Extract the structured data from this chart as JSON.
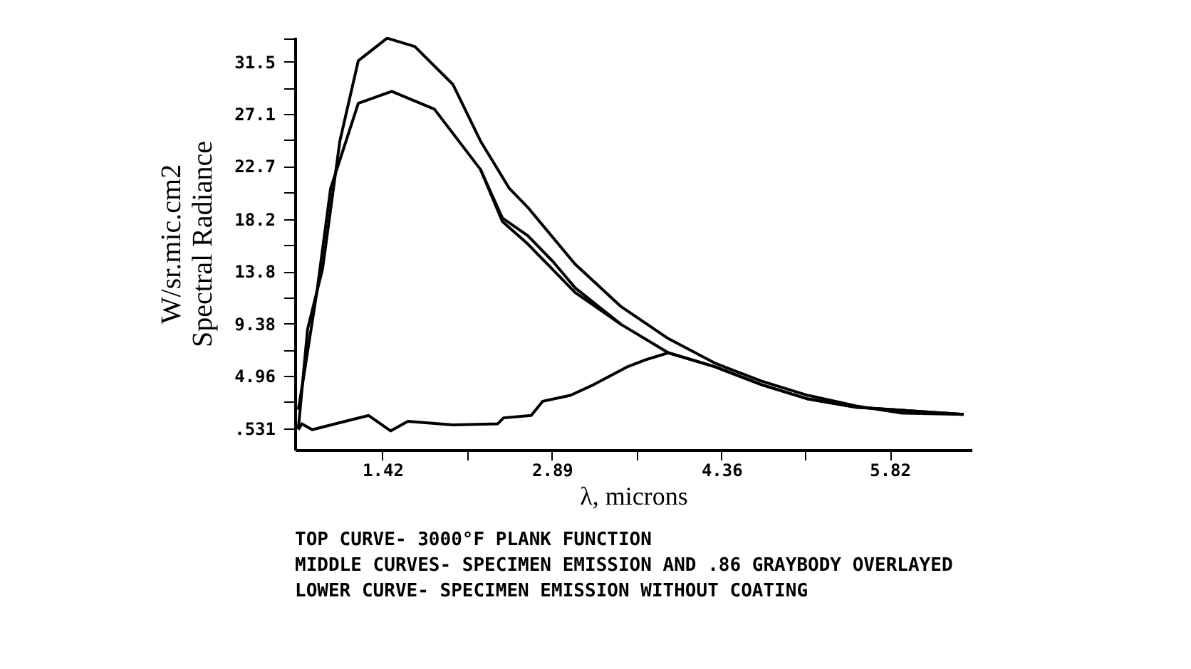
{
  "chart_data": {
    "type": "line",
    "ylabel": "W/sr.mic.cm2\nSpectral Radiance",
    "xlabel": "λ, microns",
    "xlim": [
      0.66,
      6.53
    ],
    "ylim": [
      -1.3,
      33.6
    ],
    "xticks": [
      1.42,
      {
        "value": 2.155,
        "label": null
      },
      2.89,
      {
        "value": 3.625,
        "label": null
      },
      4.36,
      {
        "value": 5.09,
        "label": null
      },
      5.82
    ],
    "yticks": [
      {
        "value": 0.531,
        "label": ".531"
      },
      {
        "value": 2.75,
        "label": null
      },
      4.96,
      {
        "value": 7.17,
        "label": null
      },
      9.38,
      {
        "value": 11.6,
        "label": null
      },
      13.8,
      {
        "value": 16.0,
        "label": null
      },
      18.2,
      {
        "value": 20.45,
        "label": null
      },
      22.7,
      {
        "value": 24.9,
        "label": null
      },
      27.1,
      {
        "value": 29.3,
        "label": null
      },
      31.5,
      {
        "value": 33.5,
        "label": null
      }
    ],
    "grid": false,
    "legend": false,
    "line_style": "solid",
    "marker": "none",
    "series": [
      {
        "color": "#000000",
        "x": [
          0.69,
          0.77,
          0.9,
          1.05,
          1.21,
          1.46,
          1.7,
          2.03,
          2.27,
          2.52,
          2.68,
          3.09,
          3.49,
          3.9,
          4.31,
          4.71,
          5.11,
          5.53,
          5.93,
          6.46
        ],
        "values": [
          0.5,
          8.9,
          14.0,
          24.8,
          31.6,
          33.5,
          32.8,
          29.6,
          24.8,
          20.8,
          19.2,
          14.4,
          10.8,
          8.1,
          6.0,
          4.5,
          3.3,
          2.4,
          1.8,
          1.7
        ]
      },
      {
        "color": "#000000",
        "x": [
          0.69,
          0.73,
          0.85,
          0.97,
          1.21,
          1.5,
          1.87,
          2.27,
          2.46,
          2.68,
          3.09,
          3.49,
          3.9,
          4.31,
          4.71,
          5.11,
          5.53,
          6.46
        ],
        "values": [
          2.1,
          4.5,
          12.0,
          20.8,
          28.0,
          29.0,
          27.5,
          22.4,
          18.0,
          16.1,
          12.0,
          9.3,
          6.9,
          5.7,
          4.2,
          3.0,
          2.3,
          1.7
        ]
      },
      {
        "color": "#000000",
        "x": [
          2.27,
          2.46,
          2.68,
          2.9,
          3.09,
          3.49
        ],
        "values": [
          22.4,
          18.3,
          16.8,
          14.6,
          12.4,
          9.3
        ]
      },
      {
        "color": "#000000",
        "x": [
          0.69,
          0.72,
          0.81,
          1.01,
          1.3,
          1.49,
          1.64,
          2.03,
          2.42,
          2.47,
          2.71,
          2.81,
          3.05,
          3.25,
          3.54,
          3.7,
          3.9,
          4.31,
          4.71,
          5.11,
          5.53,
          6.46
        ],
        "values": [
          0.4,
          0.9,
          0.4,
          0.9,
          1.6,
          0.3,
          1.1,
          0.8,
          0.9,
          1.4,
          1.6,
          2.8,
          3.3,
          4.2,
          5.7,
          6.3,
          6.9,
          5.7,
          4.2,
          3.0,
          2.3,
          1.7
        ]
      }
    ],
    "annotations": [
      "TOP CURVE- 3000°F PLANK FUNCTION",
      "MIDDLE CURVES- SPECIMEN EMISSION AND .86 GRAYBODY OVERLAYED",
      "LOWER CURVE- SPECIMEN EMISSION WITHOUT COATING"
    ]
  }
}
